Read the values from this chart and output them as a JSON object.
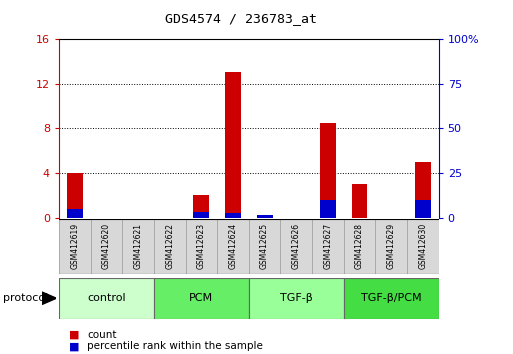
{
  "title": "GDS4574 / 236783_at",
  "samples": [
    "GSM412619",
    "GSM412620",
    "GSM412621",
    "GSM412622",
    "GSM412623",
    "GSM412624",
    "GSM412625",
    "GSM412626",
    "GSM412627",
    "GSM412628",
    "GSM412629",
    "GSM412630"
  ],
  "count_values": [
    4.0,
    0.0,
    0.0,
    0.0,
    2.0,
    13.0,
    0.0,
    0.0,
    8.5,
    3.0,
    0.0,
    5.0
  ],
  "percentile_values": [
    5.0,
    0.0,
    0.0,
    0.0,
    3.0,
    2.5,
    1.5,
    0.0,
    10.0,
    0.0,
    0.0,
    10.0
  ],
  "groups": [
    {
      "label": "control",
      "start": 0,
      "end": 3,
      "color": "#ccffcc"
    },
    {
      "label": "PCM",
      "start": 3,
      "end": 6,
      "color": "#66ee66"
    },
    {
      "label": "TGF-β",
      "start": 6,
      "end": 9,
      "color": "#99ff99"
    },
    {
      "label": "TGF-β/PCM",
      "start": 9,
      "end": 12,
      "color": "#44dd44"
    }
  ],
  "bar_color_red": "#cc0000",
  "bar_color_blue": "#0000cc",
  "ylim_left": [
    0,
    16
  ],
  "ylim_right": [
    0,
    100
  ],
  "yticks_left": [
    0,
    4,
    8,
    12,
    16
  ],
  "yticks_right": [
    0,
    25,
    50,
    75,
    100
  ],
  "yticklabels_left": [
    "0",
    "4",
    "8",
    "12",
    "16"
  ],
  "yticklabels_right": [
    "0",
    "25",
    "50",
    "75",
    "100%"
  ],
  "bar_width": 0.5,
  "protocol_label": "protocol",
  "legend_count": "count",
  "legend_percentile": "percentile rank within the sample",
  "bg_color": "#ffffff",
  "plot_bg_color": "#ffffff",
  "tick_label_color_left": "#cc0000",
  "tick_label_color_right": "#0000cc"
}
